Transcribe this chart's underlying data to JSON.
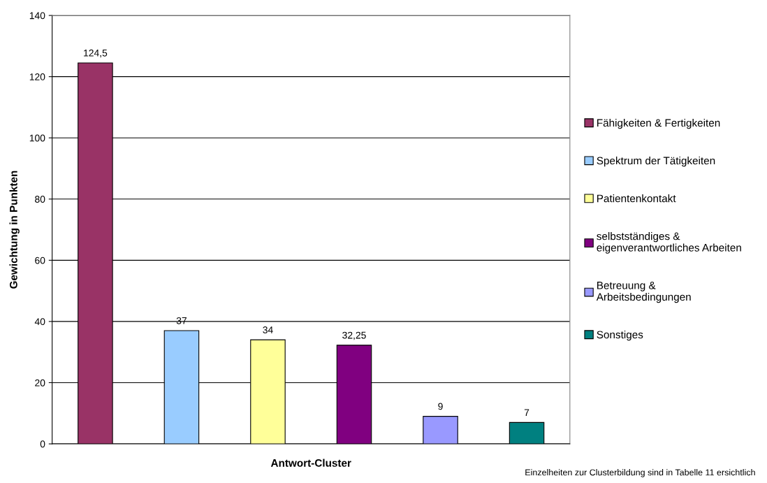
{
  "chart_data": {
    "type": "bar",
    "xlabel": "Antwort-Cluster",
    "ylabel": "Gewichtung in Punkten",
    "categories": [
      null,
      null,
      null,
      null,
      null,
      null
    ],
    "series": [
      {
        "name": "Fähigkeiten & Fertigkeiten",
        "color": "#993366",
        "values": [
          124.5,
          null,
          null,
          null,
          null,
          null
        ],
        "value_labels": [
          "124,5",
          null,
          null,
          null,
          null,
          null
        ]
      },
      {
        "name": "Spektrum der Tätigkeiten",
        "color": "#99ccff",
        "values": [
          null,
          37,
          null,
          null,
          null,
          null
        ],
        "value_labels": [
          null,
          "37",
          null,
          null,
          null,
          null
        ]
      },
      {
        "name": "Patientenkontakt",
        "color": "#ffff99",
        "values": [
          null,
          null,
          34,
          null,
          null,
          null
        ],
        "value_labels": [
          null,
          null,
          "34",
          null,
          null,
          null
        ]
      },
      {
        "name": "selbstständiges &\neigenverantwortliches Arbeiten",
        "color": "#800080",
        "values": [
          null,
          null,
          null,
          32.25,
          null,
          null
        ],
        "value_labels": [
          null,
          null,
          null,
          "32,25",
          null,
          null
        ]
      },
      {
        "name": "Betreuung &\nArbeitsbedingungen",
        "color": "#9999ff",
        "values": [
          null,
          null,
          null,
          null,
          9,
          null
        ],
        "value_labels": [
          null,
          null,
          null,
          null,
          "9",
          null
        ]
      },
      {
        "name": "Sonstiges",
        "color": "#008080",
        "values": [
          null,
          null,
          null,
          null,
          null,
          7
        ],
        "value_labels": [
          null,
          null,
          null,
          null,
          null,
          "7"
        ]
      }
    ],
    "ylim": [
      0,
      140
    ],
    "yticks": [
      0,
      20,
      40,
      60,
      80,
      100,
      120,
      140
    ],
    "grid": "y",
    "legend": "right",
    "annotations": [
      "Einzelheiten zur Clusterbildung sind in Tabelle 11 ersichtlich"
    ]
  }
}
